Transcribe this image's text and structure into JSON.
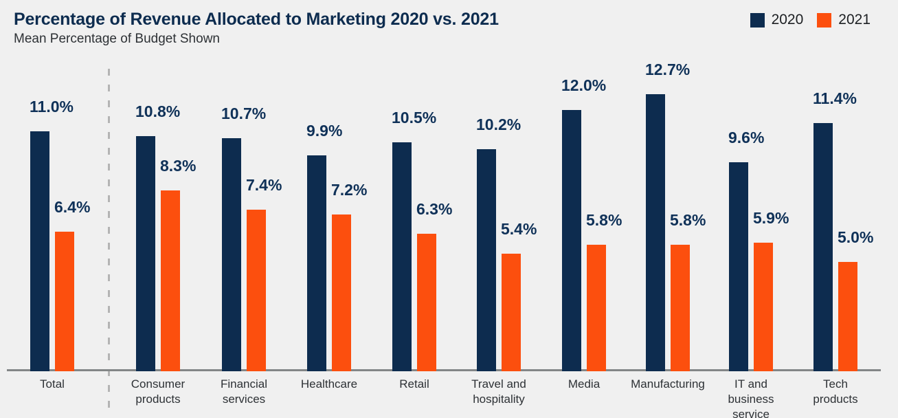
{
  "chart_data": {
    "type": "bar",
    "title": "Percentage of Revenue Allocated to Marketing 2020 vs. 2021",
    "subtitle": "Mean Percentage of Budget Shown",
    "categories": [
      "Total",
      "Consumer products",
      "Financial services",
      "Healthcare",
      "Retail",
      "Travel and hospitality",
      "Media",
      "Manufacturing",
      "IT and business service",
      "Tech products"
    ],
    "category_label_lines": [
      [
        "Total"
      ],
      [
        "Consumer",
        "products"
      ],
      [
        "Financial",
        "services"
      ],
      [
        "Healthcare"
      ],
      [
        "Retail"
      ],
      [
        "Travel and",
        "hospitality"
      ],
      [
        "Media"
      ],
      [
        "Manufacturing"
      ],
      [
        "IT and",
        "business",
        "service"
      ],
      [
        "Tech",
        "products"
      ]
    ],
    "series": [
      {
        "name": "2020",
        "color": "#0d2c4f",
        "values": [
          11.0,
          10.8,
          10.7,
          9.9,
          10.5,
          10.2,
          12.0,
          12.7,
          9.6,
          11.4
        ]
      },
      {
        "name": "2021",
        "color": "#fc4f0e",
        "values": [
          6.4,
          8.3,
          7.4,
          7.2,
          6.3,
          5.4,
          5.8,
          5.8,
          5.9,
          5.0
        ]
      }
    ],
    "value_label_format": "{value}%",
    "ylim": [
      0,
      13
    ],
    "grid": false,
    "legend_position": "top-right",
    "separator": {
      "after_category": "Total",
      "style": "dashed"
    }
  },
  "colors": {
    "background": "#f0f0f0",
    "axis_line": "#838687",
    "divider": "#b4b4b4",
    "title": "#0d2c4f",
    "subtitle": "#2d3135",
    "value_label": "#0f3158",
    "category_label": "#2d3135",
    "legend_text": "#1d2023"
  }
}
